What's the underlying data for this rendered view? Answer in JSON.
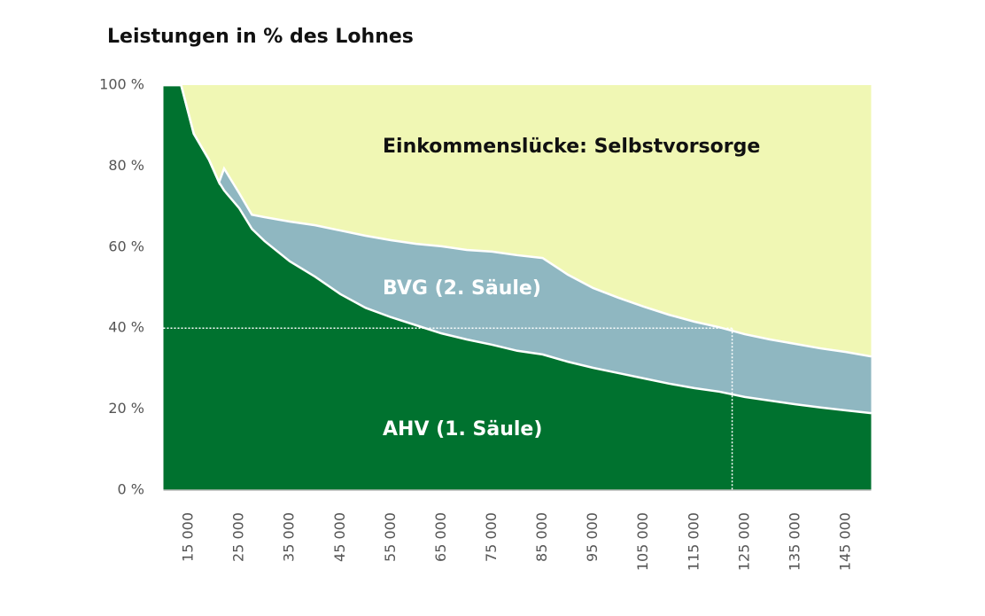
{
  "chart_data": {
    "type": "stacked_area",
    "title": "Leistungen in % des Lohnes",
    "x": [
      10000,
      13500,
      16000,
      19000,
      21000,
      22000,
      25000,
      27500,
      30000,
      35000,
      40000,
      45000,
      50000,
      55000,
      60000,
      65000,
      70000,
      75000,
      80000,
      85000,
      90000,
      95000,
      100000,
      105000,
      110000,
      115000,
      120000,
      125000,
      130000,
      135000,
      140000,
      145000,
      150000
    ],
    "series": [
      {
        "name": "AHV (1. Säule)",
        "color": "#00722f",
        "values": [
          100,
          100,
          88,
          81.6,
          76,
          74,
          69.6,
          64.5,
          61.5,
          56.5,
          52.7,
          48.4,
          45,
          42.7,
          40.7,
          38.7,
          37.2,
          35.9,
          34.4,
          33.5,
          31.7,
          30.2,
          28.9,
          27.6,
          26.3,
          25.2,
          24.3,
          23,
          22.1,
          21.2,
          20.4,
          19.7,
          19
        ]
      },
      {
        "name": "BVG (2. Säule)",
        "color": "#8fb7c1",
        "values": [
          0,
          0,
          0,
          0,
          0,
          5.4,
          3.7,
          3.5,
          5.9,
          9.8,
          12.7,
          15.7,
          17.8,
          19,
          20.1,
          21.5,
          22.1,
          23,
          23.6,
          23.8,
          21.5,
          19.7,
          18.6,
          17.7,
          17,
          16.4,
          15.9,
          15.5,
          15.1,
          14.9,
          14.6,
          14.4,
          14
        ]
      },
      {
        "name": "Einkommenslücke: Selbstvorsorge",
        "color": "#f0f7b4",
        "values": [
          0,
          0,
          12,
          18.4,
          24,
          20.6,
          26.7,
          32,
          32.6,
          33.7,
          34.6,
          35.9,
          37.2,
          38.3,
          39.2,
          39.8,
          40.7,
          41.1,
          42,
          42.7,
          46.8,
          50.1,
          52.5,
          54.7,
          56.7,
          58.4,
          59.8,
          61.5,
          62.8,
          63.9,
          65,
          65.9,
          67
        ]
      }
    ],
    "xlim": [
      10000,
      150000
    ],
    "xticks": [
      {
        "value": 15000,
        "label": "15 000"
      },
      {
        "value": 25000,
        "label": "25 000"
      },
      {
        "value": 35000,
        "label": "35 000"
      },
      {
        "value": 45000,
        "label": "45 000"
      },
      {
        "value": 55000,
        "label": "55 000"
      },
      {
        "value": 65000,
        "label": "65 000"
      },
      {
        "value": 75000,
        "label": "75 000"
      },
      {
        "value": 85000,
        "label": "85 000"
      },
      {
        "value": 95000,
        "label": "95 000"
      },
      {
        "value": 105000,
        "label": "105 000"
      },
      {
        "value": 115000,
        "label": "115 000"
      },
      {
        "value": 125000,
        "label": "125 000"
      },
      {
        "value": 135000,
        "label": "135 000"
      },
      {
        "value": 145000,
        "label": "145 000"
      }
    ],
    "ylim": [
      0,
      100
    ],
    "yticks": [
      {
        "value": 0,
        "label": "0 %"
      },
      {
        "value": 20,
        "label": "20 %"
      },
      {
        "value": 40,
        "label": "40 %"
      },
      {
        "value": 60,
        "label": "60 %"
      },
      {
        "value": 80,
        "label": "80 %"
      },
      {
        "value": 100,
        "label": "100 %"
      }
    ],
    "reference": {
      "x": 122500,
      "y": 40
    }
  }
}
